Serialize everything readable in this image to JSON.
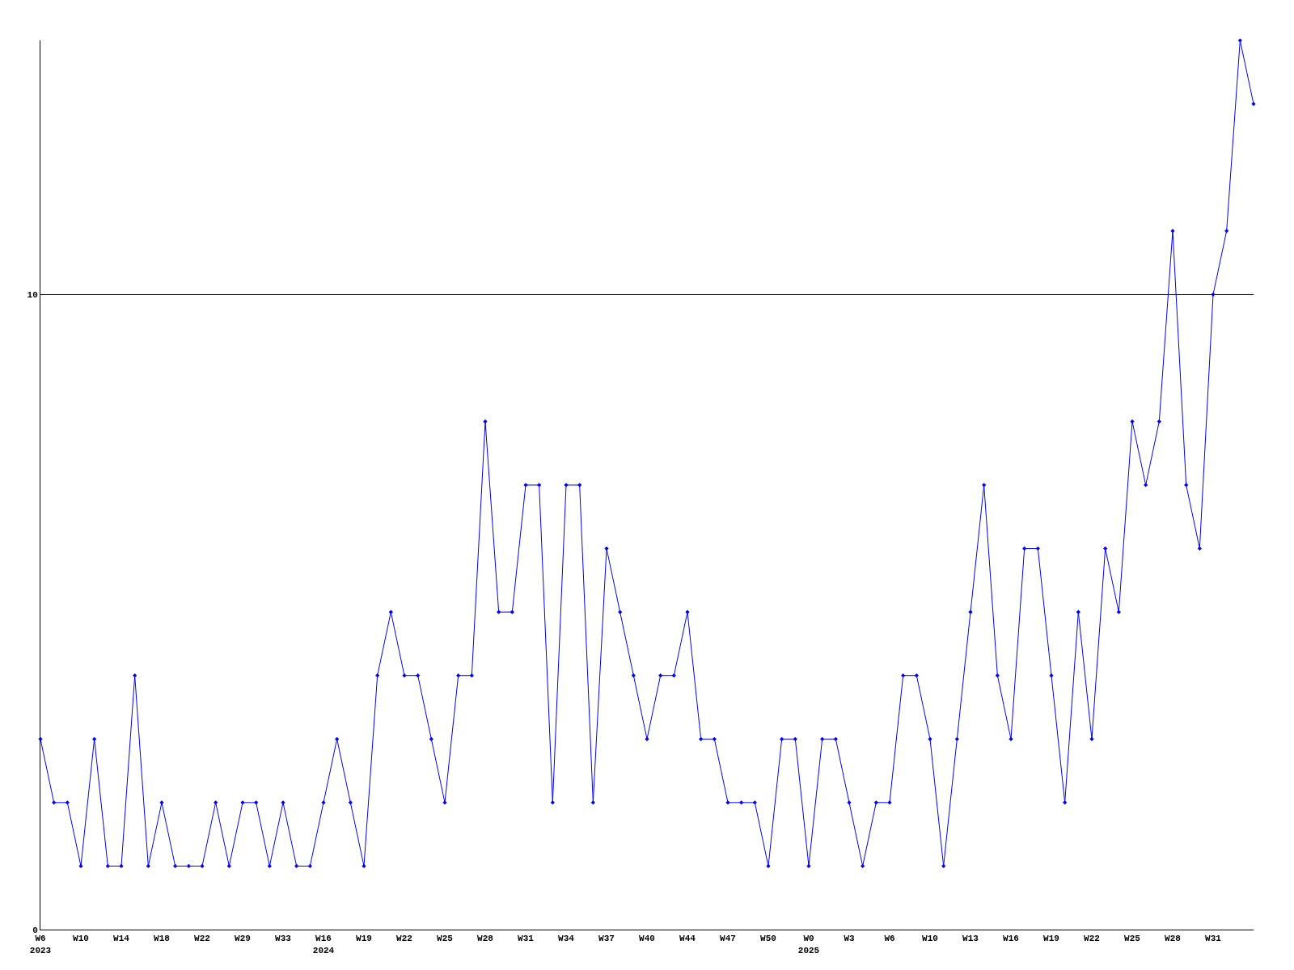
{
  "chart_data": {
    "type": "line",
    "categories": [
      "W6\n2023",
      null,
      null,
      "W10",
      null,
      null,
      "W14",
      null,
      null,
      "W18",
      null,
      null,
      "W22",
      null,
      null,
      "W29",
      null,
      null,
      "W33",
      null,
      null,
      "W16\n2024",
      null,
      null,
      "W19",
      null,
      null,
      "W22",
      null,
      null,
      "W25",
      null,
      null,
      "W28",
      null,
      null,
      "W31",
      null,
      null,
      "W34",
      null,
      null,
      "W37",
      null,
      null,
      "W40",
      null,
      null,
      "W44",
      null,
      null,
      "W47",
      null,
      null,
      "W50",
      null,
      null,
      "W0\n2025",
      null,
      null,
      "W3",
      null,
      null,
      "W6",
      null,
      null,
      "W10",
      null,
      null,
      "W13",
      null,
      null,
      "W16",
      null,
      null,
      "W19",
      null,
      null,
      "W22",
      null,
      null,
      "W25",
      null,
      null,
      "W28",
      null,
      null,
      "W31",
      null,
      null,
      null
    ],
    "series": [
      {
        "color": "#0000ff",
        "values": [
          3,
          2,
          2,
          1,
          3,
          1,
          1,
          4,
          1,
          2,
          1,
          1,
          1,
          2,
          1,
          2,
          2,
          1,
          2,
          1,
          1,
          2,
          3,
          2,
          1,
          4,
          5,
          4,
          4,
          3,
          2,
          4,
          4,
          8,
          5,
          5,
          7,
          7,
          2,
          7,
          7,
          2,
          6,
          5,
          4,
          3,
          4,
          4,
          5,
          3,
          3,
          2,
          2,
          2,
          1,
          3,
          3,
          1,
          3,
          3,
          2,
          1,
          2,
          2,
          4,
          4,
          3,
          1,
          3,
          5,
          7,
          4,
          3,
          6,
          6,
          4,
          2,
          5,
          3,
          6,
          5,
          8,
          7,
          8,
          11,
          7,
          6,
          10,
          11,
          14,
          13
        ]
      }
    ],
    "ylim": [
      0,
      14
    ],
    "yticks": [
      0,
      10
    ],
    "grid": "y",
    "marker": "diamond",
    "line_style": "solid"
  }
}
